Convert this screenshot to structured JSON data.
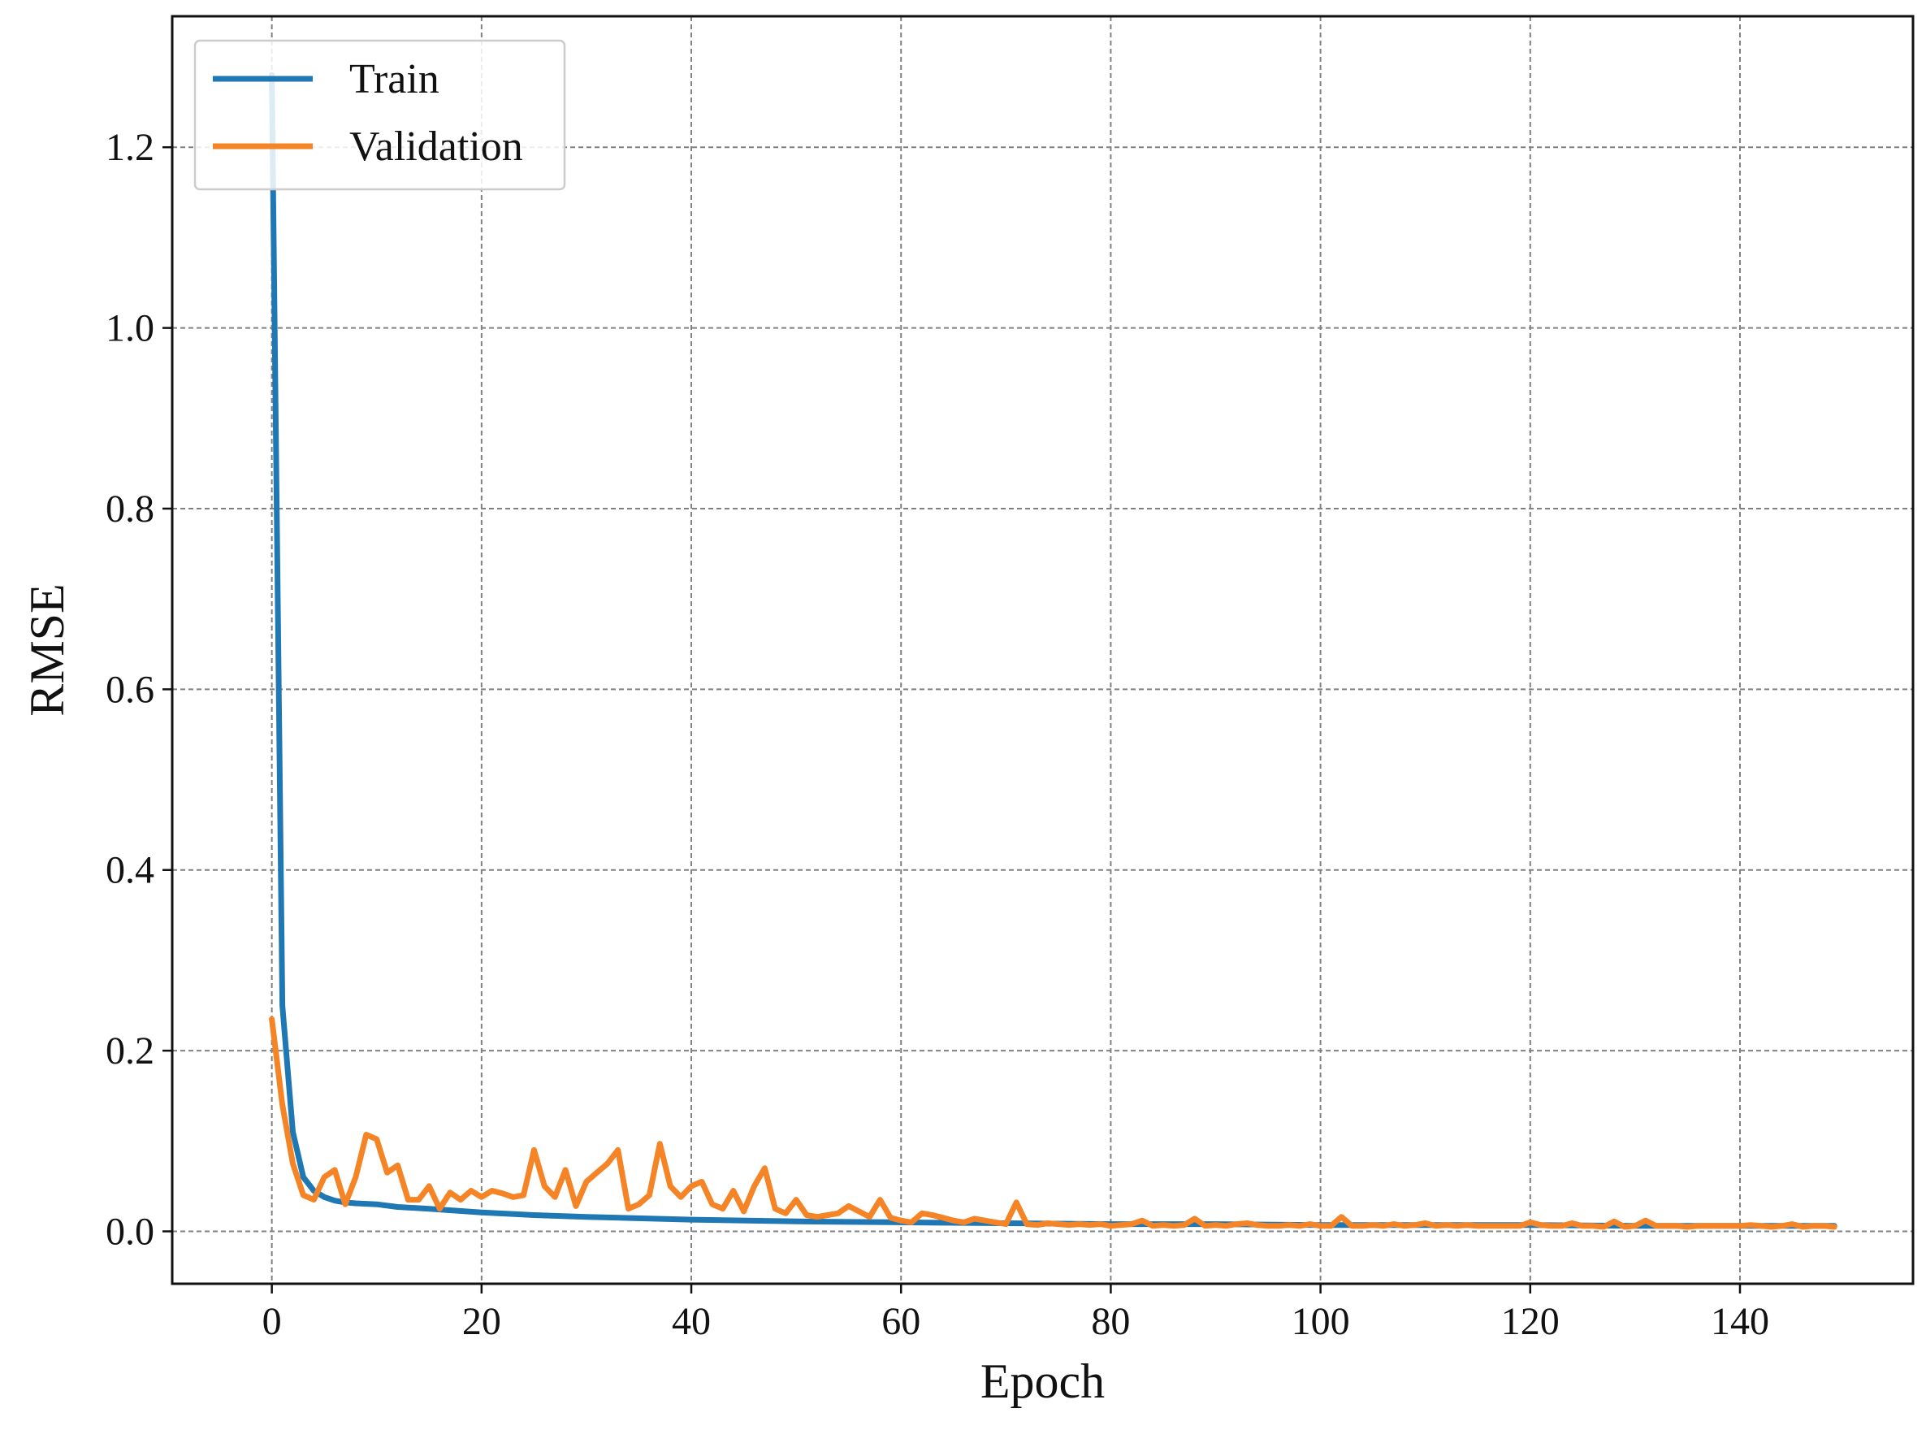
{
  "chart_data": {
    "type": "line",
    "title": "",
    "xlabel": "Epoch",
    "ylabel": "RMSE",
    "xlim": [
      -9.5,
      156.5
    ],
    "ylim": [
      -0.058,
      1.345
    ],
    "xticks": [
      0,
      20,
      40,
      60,
      80,
      100,
      120,
      140
    ],
    "yticks": [
      0.0,
      0.2,
      0.4,
      0.6,
      0.8,
      1.0,
      1.2
    ],
    "ytick_labels": [
      "0.0",
      "0.2",
      "0.4",
      "0.6",
      "0.8",
      "1.0",
      "1.2"
    ],
    "grid": true,
    "legend_position": "top-left",
    "series": [
      {
        "name": "Train",
        "color": "#1f77b4",
        "x": [
          0,
          1,
          2,
          3,
          4,
          5,
          6,
          7,
          8,
          10,
          12,
          15,
          20,
          25,
          30,
          40,
          50,
          60,
          70,
          80,
          90,
          100,
          110,
          120,
          130,
          140,
          149
        ],
        "y": [
          1.28,
          0.25,
          0.11,
          0.06,
          0.045,
          0.038,
          0.034,
          0.032,
          0.031,
          0.03,
          0.027,
          0.025,
          0.021,
          0.018,
          0.016,
          0.013,
          0.011,
          0.01,
          0.009,
          0.008,
          0.008,
          0.007,
          0.007,
          0.007,
          0.006,
          0.006,
          0.006
        ]
      },
      {
        "name": "Validation",
        "color": "#f58426",
        "x": [
          0,
          1,
          2,
          3,
          4,
          5,
          6,
          7,
          8,
          9,
          10,
          11,
          12,
          13,
          14,
          15,
          16,
          17,
          18,
          19,
          20,
          21,
          22,
          23,
          24,
          25,
          26,
          27,
          28,
          29,
          30,
          31,
          32,
          33,
          34,
          35,
          36,
          37,
          38,
          39,
          40,
          41,
          42,
          43,
          44,
          45,
          46,
          47,
          48,
          49,
          50,
          51,
          52,
          53,
          54,
          55,
          56,
          57,
          58,
          59,
          60,
          61,
          62,
          63,
          64,
          65,
          66,
          67,
          68,
          69,
          70,
          71,
          72,
          73,
          74,
          75,
          76,
          77,
          78,
          79,
          80,
          81,
          82,
          83,
          84,
          85,
          86,
          87,
          88,
          89,
          90,
          91,
          92,
          93,
          94,
          95,
          96,
          97,
          98,
          99,
          100,
          101,
          102,
          103,
          104,
          105,
          106,
          107,
          108,
          109,
          110,
          111,
          112,
          113,
          114,
          115,
          116,
          117,
          118,
          119,
          120,
          121,
          122,
          123,
          124,
          125,
          126,
          127,
          128,
          129,
          130,
          131,
          132,
          133,
          134,
          135,
          136,
          137,
          138,
          139,
          140,
          141,
          142,
          143,
          144,
          145,
          146,
          147,
          148,
          149
        ],
        "y": [
          0.235,
          0.14,
          0.075,
          0.04,
          0.035,
          0.06,
          0.068,
          0.03,
          0.06,
          0.107,
          0.102,
          0.065,
          0.073,
          0.035,
          0.035,
          0.05,
          0.025,
          0.043,
          0.035,
          0.045,
          0.038,
          0.045,
          0.042,
          0.038,
          0.04,
          0.09,
          0.05,
          0.038,
          0.068,
          0.028,
          0.055,
          0.065,
          0.075,
          0.09,
          0.025,
          0.03,
          0.04,
          0.097,
          0.05,
          0.038,
          0.05,
          0.055,
          0.03,
          0.025,
          0.045,
          0.022,
          0.05,
          0.07,
          0.025,
          0.02,
          0.035,
          0.018,
          0.016,
          0.018,
          0.02,
          0.028,
          0.022,
          0.016,
          0.035,
          0.015,
          0.012,
          0.01,
          0.02,
          0.018,
          0.015,
          0.012,
          0.01,
          0.014,
          0.012,
          0.01,
          0.008,
          0.032,
          0.008,
          0.007,
          0.009,
          0.008,
          0.007,
          0.008,
          0.007,
          0.008,
          0.006,
          0.007,
          0.008,
          0.012,
          0.006,
          0.007,
          0.006,
          0.007,
          0.014,
          0.006,
          0.007,
          0.006,
          0.008,
          0.009,
          0.007,
          0.006,
          0.006,
          0.007,
          0.006,
          0.008,
          0.006,
          0.006,
          0.016,
          0.006,
          0.006,
          0.007,
          0.006,
          0.008,
          0.006,
          0.007,
          0.009,
          0.006,
          0.007,
          0.006,
          0.007,
          0.006,
          0.006,
          0.006,
          0.006,
          0.006,
          0.01,
          0.007,
          0.006,
          0.006,
          0.009,
          0.006,
          0.006,
          0.005,
          0.011,
          0.005,
          0.006,
          0.012,
          0.006,
          0.006,
          0.006,
          0.005,
          0.006,
          0.006,
          0.006,
          0.006,
          0.006,
          0.007,
          0.006,
          0.005,
          0.006,
          0.008,
          0.005,
          0.006,
          0.006,
          0.005
        ]
      }
    ]
  }
}
